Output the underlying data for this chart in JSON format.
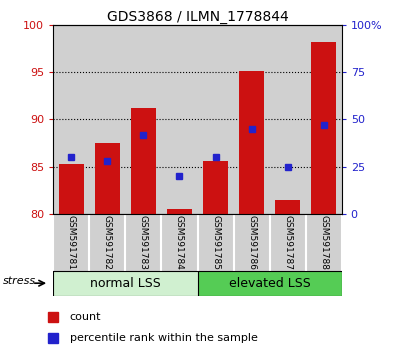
{
  "title": "GDS3868 / ILMN_1778844",
  "samples": [
    "GSM591781",
    "GSM591782",
    "GSM591783",
    "GSM591784",
    "GSM591785",
    "GSM591786",
    "GSM591787",
    "GSM591788"
  ],
  "red_values": [
    85.3,
    87.5,
    91.2,
    80.5,
    85.6,
    95.1,
    81.5,
    98.2
  ],
  "blue_values": [
    30,
    28,
    42,
    20,
    30,
    45,
    25,
    47
  ],
  "ylim_left": [
    80,
    100
  ],
  "ylim_right": [
    0,
    100
  ],
  "yticks_left": [
    80,
    85,
    90,
    95,
    100
  ],
  "yticks_right": [
    0,
    25,
    50,
    75,
    100
  ],
  "ytick_labels_right": [
    "0",
    "25",
    "50",
    "75",
    "100%"
  ],
  "group1_label": "normal LSS",
  "group2_label": "elevated LSS",
  "group1_indices": [
    0,
    1,
    2,
    3
  ],
  "group2_indices": [
    4,
    5,
    6,
    7
  ],
  "stress_label": "stress",
  "legend_red": "count",
  "legend_blue": "percentile rank within the sample",
  "bar_color": "#cc1111",
  "blue_color": "#2222cc",
  "group1_bg": "#d0f0d0",
  "group2_bg": "#55cc55",
  "col_bg": "#d0d0d0",
  "dotgrid": [
    85,
    90,
    95
  ]
}
